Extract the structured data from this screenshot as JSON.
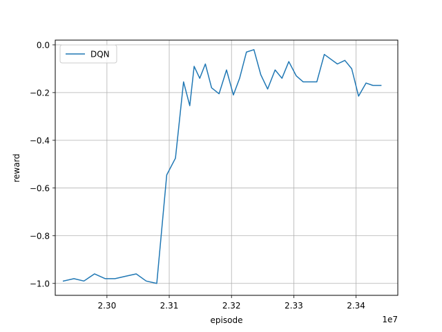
{
  "chart_data": {
    "type": "line",
    "title": "",
    "xlabel": "episode",
    "ylabel": "reward",
    "x_offset_label": "1e7",
    "x_scale": 10000000,
    "xlim": [
      2.2917,
      2.3467
    ],
    "ylim": [
      -1.05,
      0.02
    ],
    "xticks": [
      2.3,
      2.31,
      2.32,
      2.33,
      2.34
    ],
    "xtick_labels": [
      "2.30",
      "2.31",
      "2.32",
      "2.33",
      "2.34"
    ],
    "yticks": [
      0.0,
      -0.2,
      -0.4,
      -0.6,
      -0.8,
      -1.0
    ],
    "ytick_labels": [
      "0.0",
      "−0.2",
      "−0.4",
      "−0.6",
      "−0.8",
      "−1.0"
    ],
    "grid": true,
    "legend": {
      "position": "top-left"
    },
    "series": [
      {
        "name": "DQN",
        "color": "#1f77b4",
        "x": [
          2.293,
          2.2947,
          2.2963,
          2.298,
          2.2997,
          2.3013,
          2.303,
          2.3047,
          2.3063,
          2.308,
          2.3096,
          2.311,
          2.3123,
          2.3133,
          2.314,
          2.3149,
          2.3158,
          2.3168,
          2.318,
          2.3192,
          2.3203,
          2.3213,
          2.3224,
          2.3236,
          2.3247,
          2.3258,
          2.327,
          2.3281,
          2.3292,
          2.3304,
          2.3315,
          2.3326,
          2.3337,
          2.3349,
          2.337,
          2.3382,
          2.3393,
          2.3404,
          2.3416,
          2.3427,
          2.344
        ],
        "values": [
          -0.99,
          -0.98,
          -0.99,
          -0.96,
          -0.98,
          -0.98,
          -0.97,
          -0.96,
          -0.99,
          -1.0,
          -0.545,
          -0.475,
          -0.155,
          -0.255,
          -0.09,
          -0.14,
          -0.08,
          -0.18,
          -0.205,
          -0.105,
          -0.21,
          -0.14,
          -0.03,
          -0.02,
          -0.125,
          -0.185,
          -0.105,
          -0.14,
          -0.07,
          -0.13,
          -0.155,
          -0.155,
          -0.155,
          -0.04,
          -0.08,
          -0.065,
          -0.1,
          -0.215,
          -0.16,
          -0.17,
          -0.17
        ]
      }
    ]
  }
}
